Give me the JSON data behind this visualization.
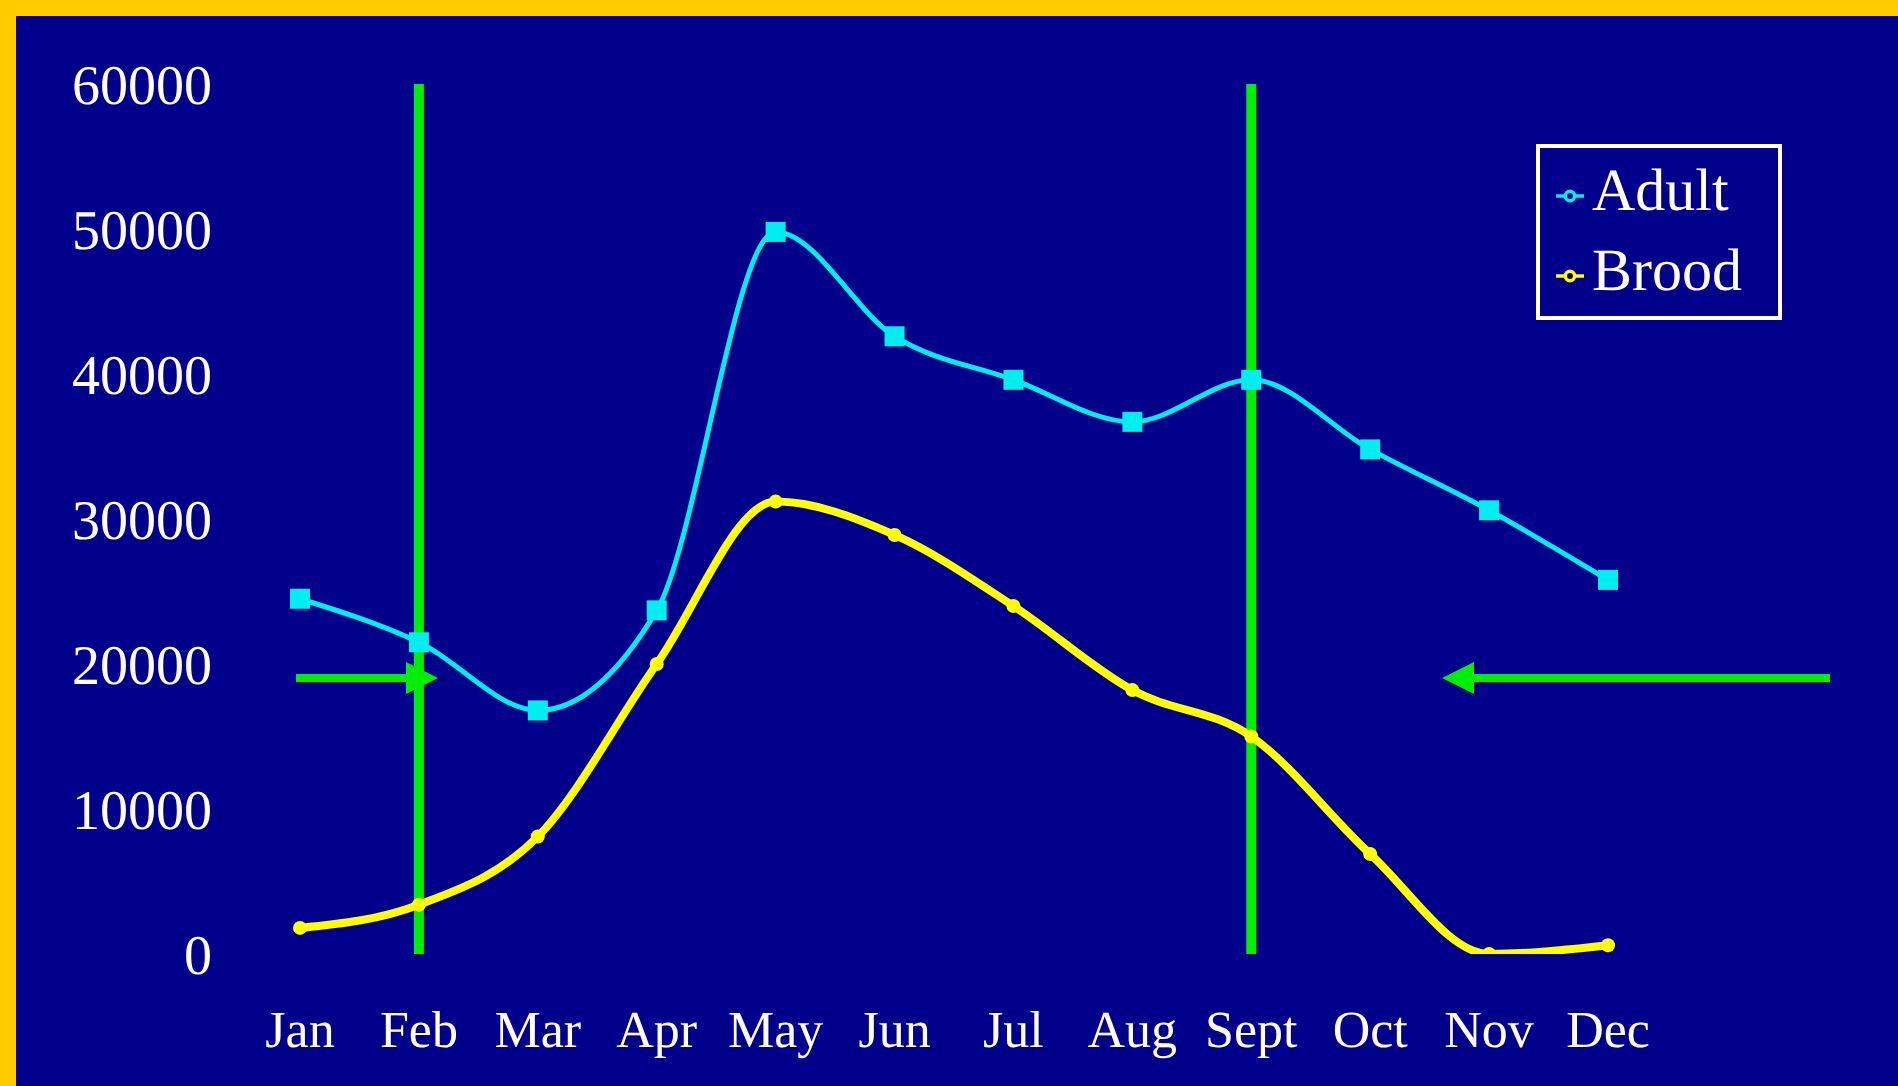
{
  "chart_data": {
    "type": "line",
    "categories": [
      "Jan",
      "Feb",
      "Mar",
      "Apr",
      "May",
      "Jun",
      "Jul",
      "Aug",
      "Sept",
      "Oct",
      "Nov",
      "Dec"
    ],
    "series": [
      {
        "name": "Adult",
        "color": "#00eeee",
        "marker": "square",
        "values": [
          24500,
          21500,
          16800,
          23700,
          49800,
          42600,
          39600,
          36700,
          39600,
          34800,
          30600,
          25800
        ]
      },
      {
        "name": "Brood",
        "color": "#ffff00",
        "marker": "circle",
        "values": [
          1800,
          3400,
          8100,
          20000,
          31200,
          28900,
          24000,
          18200,
          15000,
          6900,
          0,
          600
        ]
      }
    ],
    "ylim": [
      0,
      60000
    ],
    "yticks": [
      0,
      10000,
      20000,
      30000,
      40000,
      50000,
      60000
    ],
    "grid": false,
    "legend": "top right",
    "line_style": "solid",
    "ref_lines": [
      {
        "axis": "x",
        "value": "Feb",
        "color": "#00ee00"
      },
      {
        "axis": "x",
        "value": "Sept",
        "color": "#00ee00"
      }
    ]
  }
}
